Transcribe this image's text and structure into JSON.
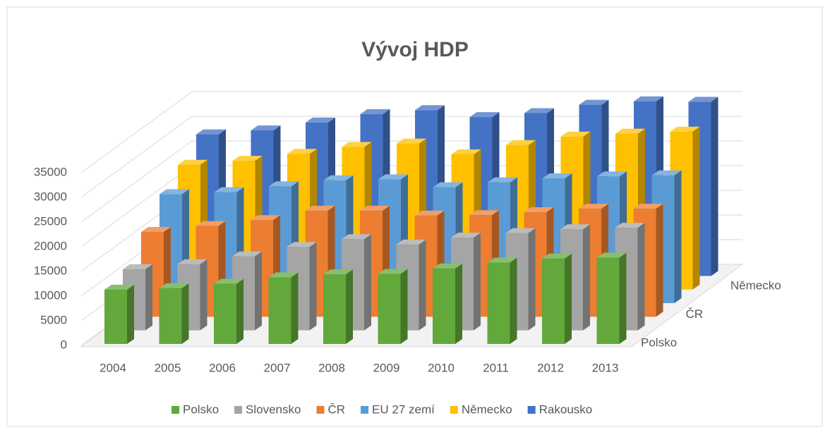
{
  "chart_data": {
    "type": "bar3d",
    "title": "Vývoj HDP",
    "categories": [
      "2004",
      "2005",
      "2006",
      "2007",
      "2008",
      "2009",
      "2010",
      "2011",
      "2012",
      "2013"
    ],
    "series": [
      {
        "name": "Polsko",
        "color": "#62a83b",
        "values": [
          11000,
          11300,
          12200,
          13500,
          14100,
          14200,
          15300,
          16500,
          17300,
          17500
        ]
      },
      {
        "name": "Slovensko",
        "color": "#a5a5a5",
        "values": [
          12400,
          13400,
          15000,
          16900,
          18500,
          17400,
          18800,
          19700,
          20500,
          20800
        ]
      },
      {
        "name": "ČR",
        "color": "#ed7d31",
        "values": [
          17200,
          18400,
          19600,
          21500,
          21500,
          20500,
          20600,
          21200,
          21900,
          21900
        ]
      },
      {
        "name": "EU 27 zemí",
        "color": "#5b9bd5",
        "values": [
          22100,
          22500,
          23700,
          24900,
          25100,
          23500,
          24500,
          25300,
          25700,
          25900
        ]
      },
      {
        "name": "Německo",
        "color": "#ffc000",
        "values": [
          25300,
          26100,
          27500,
          28900,
          29600,
          27400,
          29300,
          31000,
          31600,
          32000
        ]
      },
      {
        "name": "Rakousko",
        "color": "#4472c4",
        "values": [
          28700,
          29500,
          31100,
          32800,
          33600,
          32200,
          33000,
          34700,
          35400,
          35300
        ]
      }
    ],
    "ylim": [
      0,
      35000
    ],
    "yticks": [
      0,
      5000,
      10000,
      15000,
      20000,
      25000,
      30000,
      35000
    ],
    "grid": true,
    "legend": "bottom"
  }
}
